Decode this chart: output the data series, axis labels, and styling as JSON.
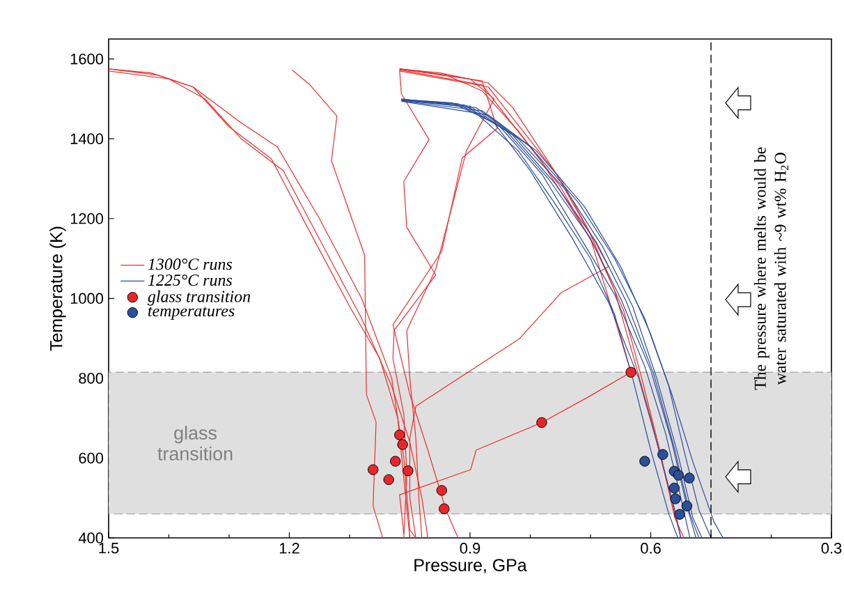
{
  "chart_data": {
    "type": "line",
    "xlabel": "Pressure, GPa",
    "ylabel": "Temperature (K)",
    "xlim": [
      1.5,
      0.3
    ],
    "xticks": [
      1.5,
      1.2,
      0.9,
      0.6,
      0.3
    ],
    "ylim": [
      400,
      1650
    ],
    "yticks": [
      400,
      600,
      800,
      1000,
      1200,
      1400,
      1600
    ],
    "legend": "left",
    "marker": "none",
    "line_style": "solid",
    "ref_lines": [
      {
        "axis": "x",
        "value": 0.5,
        "label": "The pressure where melts would be water saturated with ~9 wt% H$_{2}$O",
        "color": "#000000",
        "line_style": "dashed"
      }
    ],
    "bands": [
      {
        "axis": "y",
        "from": 460,
        "to": 815,
        "label": "glass transition",
        "color": "#e0dfdf"
      }
    ],
    "series": [
      {
        "name": "1300°C runs",
        "color": "#ee2b2b",
        "x": [
          1.5,
          1.43,
          1.36,
          1.28,
          1.22,
          1.15,
          1.08,
          1.03,
          1.01,
          1.0,
          0.99
        ],
        "values": [
          1575,
          1565,
          1530,
          1440,
          1380,
          1200,
          1000,
          800,
          600,
          420,
          400
        ]
      },
      {
        "color": "#ee2b2b",
        "x": [
          1.5,
          1.42,
          1.36,
          1.3,
          1.23,
          1.16,
          1.1,
          1.05,
          1.02,
          1.01,
          1.0
        ],
        "values": [
          1575,
          1560,
          1530,
          1430,
          1350,
          1150,
          980,
          850,
          700,
          550,
          400
        ]
      },
      {
        "color": "#ee2b2b",
        "x": [
          1.5,
          1.4,
          1.34,
          1.28,
          1.21,
          1.14,
          1.08,
          1.03,
          1.0,
          0.98,
          0.97
        ],
        "values": [
          1570,
          1550,
          1500,
          1400,
          1320,
          1120,
          950,
          780,
          640,
          500,
          400
        ]
      },
      {
        "color": "#ee2b2b",
        "x": [
          1.195,
          1.167,
          1.121,
          1.13,
          1.075,
          1.072,
          1.056,
          1.061,
          1.045
        ],
        "values": [
          1572,
          1537,
          1457,
          1345,
          1108,
          759,
          690,
          480,
          400
        ]
      },
      {
        "color": "#ee2b2b",
        "x": [
          1.017,
          1.014,
          0.968,
          1.01,
          1.005,
          0.957,
          1.026,
          1.028,
          1.01,
          1.005,
          1.01
        ],
        "values": [
          1572,
          1513,
          1398,
          1293,
          1178,
          1059,
          920,
          850,
          710,
          560,
          400
        ]
      },
      {
        "color": "#ee2b2b",
        "x": [
          1.017,
          0.9,
          0.86,
          0.906,
          0.957,
          1.005,
          1.0,
          0.99,
          0.985,
          0.98
        ],
        "values": [
          1575,
          1550,
          1500,
          1370,
          1073,
          920,
          800,
          650,
          500,
          400
        ]
      },
      {
        "color": "#ee2b2b",
        "x": [
          1.017,
          0.88,
          0.855,
          0.913,
          0.947,
          1.028,
          1.0,
          0.97,
          0.95,
          0.94,
          0.92
        ],
        "values": [
          1575,
          1545,
          1426,
          1352,
          1118,
          934,
          760,
          620,
          520,
          470,
          400
        ]
      },
      {
        "color": "#ee2b2b",
        "x": [
          1.017,
          0.87,
          0.75,
          0.67,
          0.749,
          0.818,
          0.99,
          1.0,
          1.0,
          0.99
        ],
        "values": [
          1570,
          1530,
          1300,
          1080,
          1014,
          899,
          730,
          650,
          500,
          400
        ]
      },
      {
        "color": "#ee2b2b",
        "x": [
          1.017,
          0.88,
          0.78,
          0.7,
          0.66,
          0.633,
          0.705,
          0.781,
          0.89,
          0.899,
          1.017,
          1.01
        ],
        "values": [
          1573,
          1535,
          1340,
          1150,
          950,
          815,
          752,
          689,
          620,
          571,
          508,
          410
        ]
      },
      {
        "color": "#ee2b2b",
        "x": [
          1.017,
          0.95,
          0.87,
          0.83,
          0.76,
          0.7,
          0.66,
          0.63,
          0.6,
          0.57,
          0.55
        ],
        "values": [
          1575,
          1565,
          1540,
          1480,
          1320,
          1160,
          1020,
          860,
          700,
          520,
          400
        ]
      },
      {
        "color": "#ee2b2b",
        "x": [
          1.017,
          0.94,
          0.88,
          0.82,
          0.75,
          0.69,
          0.645,
          0.615,
          0.585,
          0.56,
          0.545
        ],
        "values": [
          1575,
          1560,
          1520,
          1420,
          1280,
          1120,
          970,
          800,
          620,
          450,
          400
        ]
      },
      {
        "name": "1225°C runs",
        "color": "#2a4c9c",
        "x": [
          1.014,
          0.93,
          0.86,
          0.8,
          0.73,
          0.67,
          0.62,
          0.59,
          0.56,
          0.55
        ],
        "values": [
          1499,
          1490,
          1440,
          1320,
          1150,
          990,
          800,
          640,
          470,
          400
        ]
      },
      {
        "color": "#2a4c9c",
        "x": [
          1.014,
          0.92,
          0.85,
          0.78,
          0.72,
          0.66,
          0.61,
          0.575,
          0.55,
          0.535
        ],
        "values": [
          1499,
          1488,
          1430,
          1310,
          1160,
          1010,
          830,
          660,
          500,
          400
        ]
      },
      {
        "color": "#2a4c9c",
        "x": [
          1.014,
          0.91,
          0.84,
          0.77,
          0.7,
          0.65,
          0.6,
          0.565,
          0.54,
          0.525
        ],
        "values": [
          1498,
          1485,
          1420,
          1300,
          1150,
          1000,
          820,
          640,
          480,
          400
        ]
      },
      {
        "color": "#2a4c9c",
        "x": [
          1.014,
          0.9,
          0.83,
          0.76,
          0.69,
          0.64,
          0.595,
          0.56,
          0.535,
          0.52
        ],
        "values": [
          1497,
          1482,
          1410,
          1290,
          1140,
          990,
          810,
          620,
          460,
          400
        ]
      },
      {
        "color": "#2a4c9c",
        "x": [
          1.014,
          0.89,
          0.82,
          0.74,
          0.68,
          0.63,
          0.59,
          0.555,
          0.53,
          0.515
        ],
        "values": [
          1496,
          1478,
          1400,
          1270,
          1130,
          980,
          800,
          610,
          450,
          400
        ]
      },
      {
        "color": "#2a4c9c",
        "x": [
          1.014,
          0.88,
          0.8,
          0.72,
          0.66,
          0.61,
          0.57,
          0.545,
          0.52,
          0.5
        ],
        "values": [
          1495,
          1470,
          1380,
          1240,
          1100,
          950,
          780,
          620,
          470,
          400
        ]
      },
      {
        "color": "#2a4c9c",
        "x": [
          1.014,
          0.87,
          0.79,
          0.71,
          0.65,
          0.6,
          0.565,
          0.53,
          0.495,
          0.48
        ],
        "values": [
          1494,
          1460,
          1370,
          1230,
          1080,
          910,
          760,
          590,
          440,
          400
        ]
      },
      {
        "color": "#2a4c9c",
        "x": [
          1.014,
          0.9,
          0.82,
          0.76,
          0.7,
          0.66,
          0.63,
          0.6,
          0.57,
          0.555
        ],
        "values": [
          1500,
          1478,
          1370,
          1240,
          1100,
          960,
          800,
          620,
          460,
          400
        ]
      },
      {
        "type": "scatter",
        "name": "glass transition",
        "marker": "circle",
        "color": "#e8262a",
        "x": [
          1.061,
          1.035,
          1.024,
          1.017,
          1.012,
          1.003,
          0.947,
          0.943,
          0.781,
          0.633
        ],
        "values": [
          571,
          546,
          592,
          658,
          634,
          568,
          519,
          473,
          689,
          815
        ]
      },
      {
        "type": "scatter",
        "name": "temperatures",
        "marker": "circle",
        "color": "#2b4f9a",
        "x": [
          0.61,
          0.58,
          0.561,
          0.554,
          0.536,
          0.561,
          0.559,
          0.54,
          0.552
        ],
        "values": [
          592,
          609,
          567,
          557,
          550,
          525,
          498,
          480,
          459
        ]
      }
    ]
  }
}
